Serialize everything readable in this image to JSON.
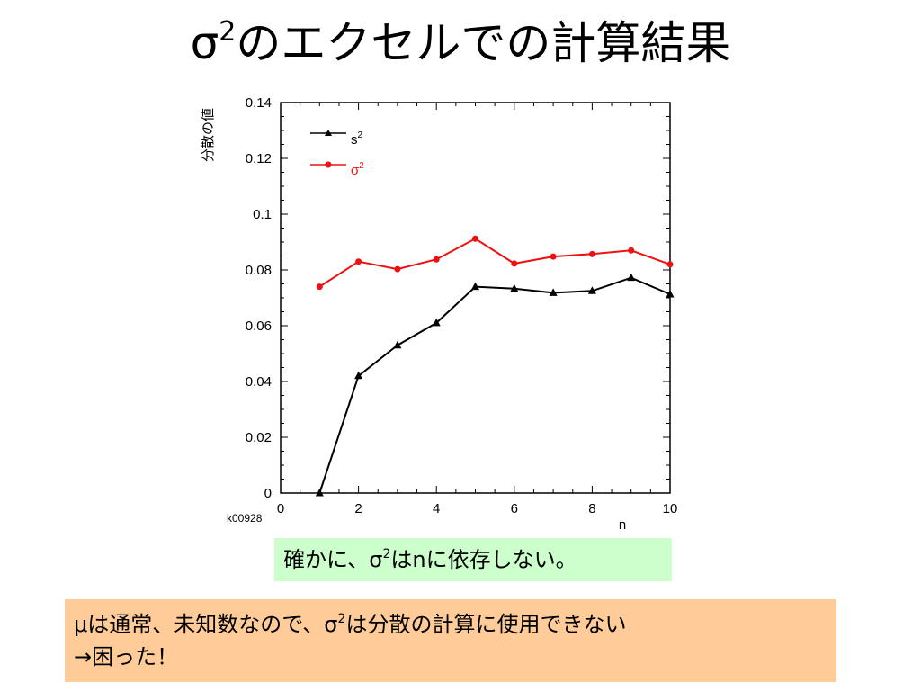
{
  "slide": {
    "title_main": "σ",
    "title_sup": "2",
    "title_rest": "のエクセルでの計算結果"
  },
  "chart_data": {
    "type": "line",
    "ylabel": "分散の値",
    "xlabel": "n",
    "xlim": [
      0,
      10
    ],
    "ylim": [
      0,
      0.14
    ],
    "x_ticks": [
      "0",
      "2",
      "4",
      "6",
      "8",
      "10"
    ],
    "y_ticks": [
      "0",
      "0.02",
      "0.04",
      "0.06",
      "0.08",
      "0.1",
      "0.12",
      "0.14"
    ],
    "corner_label": "k00928",
    "legend_position": "top-left inside",
    "series": [
      {
        "name": "s",
        "name_sup": "2",
        "color": "#000000",
        "marker": "triangle",
        "x": [
          1,
          2,
          3,
          4,
          5,
          6,
          7,
          8,
          9,
          10
        ],
        "y": [
          0.0,
          0.042,
          0.053,
          0.061,
          0.074,
          0.0733,
          0.0718,
          0.0725,
          0.0772,
          0.0713
        ]
      },
      {
        "name": "σ",
        "name_sup": "2",
        "color": "#ee1111",
        "marker": "circle",
        "x": [
          1,
          2,
          3,
          4,
          5,
          6,
          7,
          8,
          9,
          10
        ],
        "y": [
          0.074,
          0.083,
          0.0803,
          0.0838,
          0.0912,
          0.0823,
          0.0848,
          0.0857,
          0.087,
          0.082
        ]
      }
    ]
  },
  "notes": {
    "green_a": "確かに、σ",
    "green_sup": "2",
    "green_b": "はnに依存しない。",
    "orange_line1_a": "μは通常、未知数なので、σ",
    "orange_line1_sup": "2",
    "orange_line1_b": "は分散の計算に使用できない",
    "orange_line2": "→困った！"
  },
  "colors": {
    "green_box": "#ccffcc",
    "orange_box": "#ffcc99",
    "s2_series": "#000000",
    "sigma2_series": "#ee1111"
  }
}
